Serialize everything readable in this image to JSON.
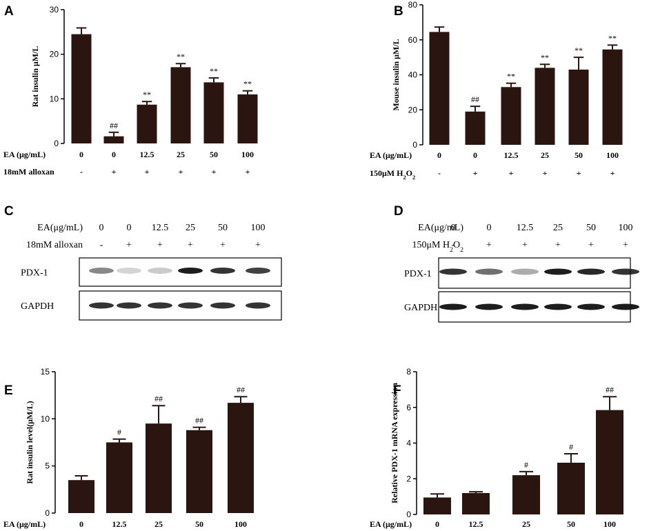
{
  "colors": {
    "bar": "#2b1511",
    "axis": "#000000",
    "band": "#111111",
    "blot_bg": "#ffffff"
  },
  "chart_data": [
    {
      "panel": "A",
      "type": "bar",
      "ylabel": "Rat insulin μM/L",
      "ylim": [
        0,
        30
      ],
      "yticks": [
        0,
        10,
        20,
        30
      ],
      "categories": [
        "0",
        "0",
        "12.5",
        "25",
        "50",
        "100"
      ],
      "values": [
        24.5,
        1.6,
        8.7,
        17.1,
        13.7,
        11.0
      ],
      "errors": [
        1.4,
        0.9,
        0.7,
        0.8,
        1.0,
        0.8
      ],
      "annotations": [
        "",
        "##",
        "**",
        "**",
        "**",
        "**"
      ],
      "x_rows": [
        {
          "label": "EA (μg/mL)",
          "values": [
            "0",
            "0",
            "12.5",
            "25",
            "50",
            "100"
          ]
        },
        {
          "label": "18mM alloxan",
          "values": [
            "-",
            "+",
            "+",
            "+",
            "+",
            "+"
          ]
        }
      ]
    },
    {
      "panel": "B",
      "type": "bar",
      "ylabel": "Mouse insulin μM/L",
      "ylim": [
        0,
        80
      ],
      "yticks": [
        0,
        20,
        40,
        60,
        80
      ],
      "categories": [
        "0",
        "0",
        "12.5",
        "25",
        "50",
        "100"
      ],
      "values": [
        64.5,
        19.0,
        33.0,
        44.0,
        43.0,
        54.5
      ],
      "errors": [
        2.8,
        3.0,
        2.2,
        2.0,
        7.0,
        2.5
      ],
      "annotations": [
        "",
        "##",
        "**",
        "**",
        "**",
        "**"
      ],
      "x_rows": [
        {
          "label": "EA (μg/mL)",
          "values": [
            "0",
            "0",
            "12.5",
            "25",
            "50",
            "100"
          ]
        },
        {
          "label": "150μM H",
          "label_sub": "2",
          "label_tail": "O",
          "label_tail_sub": "2",
          "values": [
            "-",
            "+",
            "+",
            "+",
            "+",
            "+"
          ]
        }
      ]
    },
    {
      "panel": "E",
      "type": "bar",
      "ylabel": "Rat insulin level(μM/L)",
      "ylim": [
        0,
        15
      ],
      "yticks": [
        0,
        5,
        10,
        15
      ],
      "categories": [
        "0",
        "12.5",
        "25",
        "50",
        "100"
      ],
      "values": [
        3.5,
        7.5,
        9.5,
        8.8,
        11.7
      ],
      "errors": [
        0.45,
        0.35,
        1.9,
        0.3,
        0.65
      ],
      "annotations": [
        "",
        "#",
        "##",
        "##",
        "##"
      ],
      "x_rows": [
        {
          "label": "EA (μg/mL)",
          "values": [
            "0",
            "12.5",
            "25",
            "50",
            "100"
          ]
        }
      ]
    },
    {
      "panel": "F",
      "type": "bar",
      "ylabel": "Relative PDX-1 mRNA expression",
      "ylim": [
        0,
        8
      ],
      "yticks": [
        0,
        2,
        4,
        6,
        8
      ],
      "categories": [
        "0",
        "12.5",
        "25",
        "50",
        "100"
      ],
      "values": [
        0.95,
        1.2,
        2.2,
        2.9,
        5.85
      ],
      "errors": [
        0.2,
        0.07,
        0.2,
        0.5,
        0.75
      ],
      "annotations": [
        "",
        "",
        "#",
        "#",
        "##"
      ],
      "x_rows": [
        {
          "label": "EA (μg/mL)",
          "values": [
            "0",
            "12.5",
            "25",
            "50",
            "100"
          ]
        }
      ]
    }
  ],
  "blots": [
    {
      "panel": "C",
      "header_rows": [
        {
          "label": "EA(μg/mL)",
          "values": [
            "0",
            "0",
            "12.5",
            "25",
            "50",
            "100"
          ]
        },
        {
          "label": "18mM alloxan",
          "values": [
            "-",
            "+",
            "+",
            "+",
            "+",
            "+"
          ]
        }
      ],
      "rows": [
        {
          "label": "PDX-1",
          "intensity": [
            0.5,
            0.18,
            0.22,
            0.95,
            0.85,
            0.8
          ]
        },
        {
          "label": "GAPDH",
          "intensity": [
            0.85,
            0.85,
            0.85,
            0.85,
            0.85,
            0.85
          ]
        }
      ]
    },
    {
      "panel": "D",
      "header_rows": [
        {
          "label": "EA(μg/mL)",
          "values": [
            "0",
            "0",
            "12.5",
            "25",
            "50",
            "100"
          ]
        },
        {
          "label": "150μM H",
          "label_sub": "2",
          "label_tail": "O",
          "label_tail_sub": "2",
          "values": [
            "-",
            "+",
            "+",
            "+",
            "+",
            "+"
          ]
        }
      ],
      "rows": [
        {
          "label": "PDX-1",
          "intensity": [
            0.85,
            0.6,
            0.35,
            0.95,
            0.9,
            0.85
          ]
        },
        {
          "label": "GAPDH",
          "intensity": [
            0.95,
            0.95,
            0.95,
            0.95,
            0.95,
            0.95
          ]
        }
      ]
    }
  ]
}
